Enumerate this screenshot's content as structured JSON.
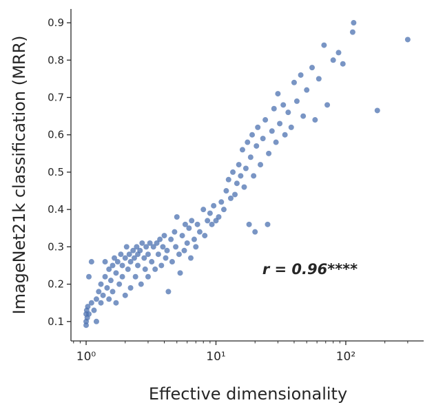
{
  "chart_data": {
    "type": "scatter",
    "x_label": "Effective dimensionality",
    "y_label": "ImageNet21k classification (MRR)",
    "annotation": "r = 0.96****",
    "x_scale": "log",
    "color": "#4c72b0",
    "xlim": [
      0.764,
      398
    ],
    "ylim": [
      0.048,
      0.937
    ],
    "xticks": [
      {
        "value": 1,
        "label": "10⁰"
      },
      {
        "value": 10,
        "label": "10¹"
      },
      {
        "value": 100,
        "label": "10²"
      }
    ],
    "xminorticks": [
      0.8,
      0.9,
      2,
      3,
      4,
      5,
      6,
      7,
      8,
      9,
      20,
      30,
      40,
      50,
      60,
      70,
      80,
      90,
      200,
      300
    ],
    "yticks": [
      0.1,
      0.2,
      0.3,
      0.4,
      0.5,
      0.6,
      0.7,
      0.8,
      0.9
    ],
    "x": [
      1.0,
      1.0,
      1.0,
      1.01,
      1.02,
      1.03,
      1.05,
      1.05,
      1.1,
      1.1,
      1.15,
      1.2,
      1.2,
      1.25,
      1.3,
      1.3,
      1.35,
      1.4,
      1.4,
      1.45,
      1.5,
      1.5,
      1.55,
      1.6,
      1.6,
      1.65,
      1.7,
      1.7,
      1.75,
      1.8,
      1.85,
      1.9,
      1.9,
      2.0,
      2.0,
      2.05,
      2.1,
      2.15,
      2.2,
      2.2,
      2.3,
      2.35,
      2.4,
      2.45,
      2.5,
      2.5,
      2.6,
      2.65,
      2.7,
      2.8,
      2.85,
      2.9,
      3.0,
      3.0,
      3.1,
      3.2,
      3.3,
      3.4,
      3.5,
      3.6,
      3.7,
      3.8,
      3.9,
      4.0,
      4.1,
      4.2,
      4.3,
      4.5,
      4.6,
      4.8,
      4.9,
      5.0,
      5.2,
      5.3,
      5.5,
      5.7,
      5.8,
      6.0,
      6.2,
      6.4,
      6.5,
      6.8,
      7.0,
      7.2,
      7.5,
      8.0,
      8.2,
      8.6,
      9.0,
      9.3,
      9.6,
      10,
      10.5,
      11,
      11.5,
      12,
      12.5,
      13,
      13.5,
      14,
      14.5,
      15,
      15.5,
      16,
      16.5,
      17,
      17.5,
      18,
      18.5,
      19,
      19.5,
      20,
      20.5,
      21,
      22,
      23,
      24,
      25,
      25.5,
      27,
      28,
      29,
      30,
      31,
      33,
      34,
      36,
      38,
      40,
      42,
      45,
      47,
      50,
      55,
      58,
      62,
      68,
      72,
      80,
      88,
      95,
      113,
      115,
      175,
      300
    ],
    "values": [
      0.09,
      0.1,
      0.12,
      0.13,
      0.11,
      0.14,
      0.12,
      0.22,
      0.15,
      0.26,
      0.13,
      0.16,
      0.1,
      0.18,
      0.15,
      0.2,
      0.17,
      0.22,
      0.26,
      0.19,
      0.16,
      0.24,
      0.21,
      0.25,
      0.18,
      0.27,
      0.23,
      0.15,
      0.26,
      0.2,
      0.28,
      0.25,
      0.22,
      0.27,
      0.17,
      0.3,
      0.24,
      0.28,
      0.26,
      0.19,
      0.29,
      0.27,
      0.22,
      0.3,
      0.28,
      0.25,
      0.29,
      0.2,
      0.31,
      0.27,
      0.24,
      0.3,
      0.28,
      0.22,
      0.31,
      0.26,
      0.3,
      0.24,
      0.31,
      0.28,
      0.32,
      0.25,
      0.3,
      0.33,
      0.27,
      0.29,
      0.18,
      0.32,
      0.26,
      0.34,
      0.3,
      0.38,
      0.28,
      0.23,
      0.33,
      0.29,
      0.36,
      0.31,
      0.35,
      0.27,
      0.37,
      0.32,
      0.3,
      0.36,
      0.34,
      0.4,
      0.33,
      0.37,
      0.39,
      0.36,
      0.41,
      0.37,
      0.38,
      0.42,
      0.4,
      0.45,
      0.48,
      0.43,
      0.5,
      0.44,
      0.47,
      0.52,
      0.49,
      0.56,
      0.46,
      0.51,
      0.58,
      0.36,
      0.54,
      0.6,
      0.49,
      0.34,
      0.57,
      0.62,
      0.52,
      0.59,
      0.64,
      0.36,
      0.55,
      0.61,
      0.67,
      0.58,
      0.71,
      0.63,
      0.68,
      0.6,
      0.66,
      0.62,
      0.74,
      0.69,
      0.76,
      0.65,
      0.72,
      0.78,
      0.64,
      0.75,
      0.84,
      0.68,
      0.8,
      0.82,
      0.79,
      0.875,
      0.9,
      0.665,
      0.855
    ]
  }
}
